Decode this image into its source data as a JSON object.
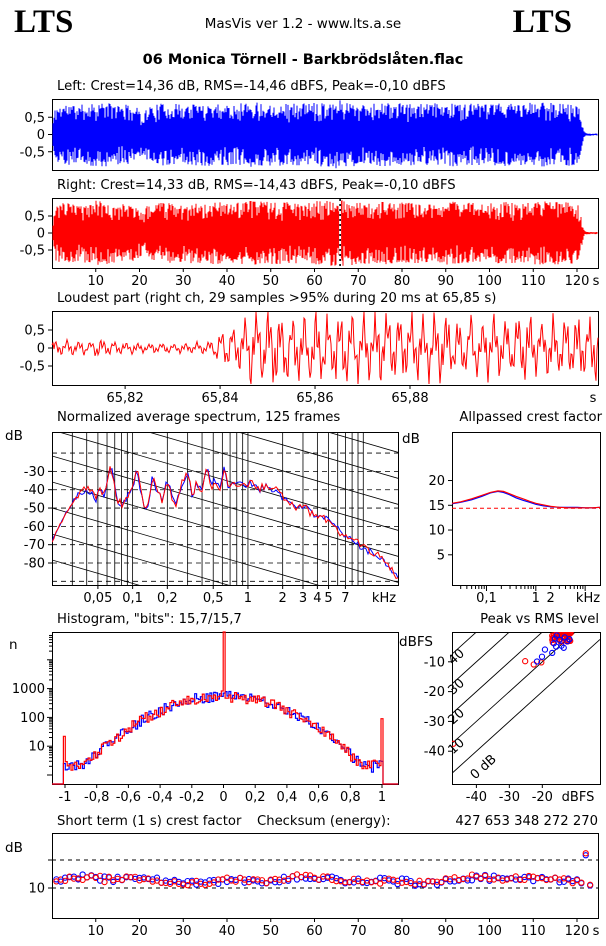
{
  "header": {
    "logo_left": "LTS",
    "logo_right": "LTS",
    "version_text": "MasVis ver 1.2 - www.lts.a.se"
  },
  "track_title": "06 Monica Törnell - Barkbrödslåten.flac",
  "checksum": {
    "label": "Checksum (energy):",
    "value": "427 653 348 272 270"
  },
  "colors": {
    "left_channel": "#0000ff",
    "right_channel": "#ff0000",
    "axis": "#000000",
    "reference_dashed": "#ff0000",
    "background": "#ffffff"
  },
  "chart_data": [
    {
      "id": "left_waveform",
      "type": "area",
      "title": "Left: Crest=14,36 dB, RMS=-14,46 dBFS, Peak=-0,10 dBFS",
      "channel": "left",
      "color": "#0000ff",
      "x_range_s": [
        0,
        124.8
      ],
      "y_ticks": [
        "0,5",
        "0",
        "-0,5"
      ],
      "y_tick_values": [
        0.5,
        0,
        -0.5
      ],
      "envelope": [
        [
          0,
          0.25
        ],
        [
          0.8,
          0.82
        ],
        [
          3,
          0.9
        ],
        [
          6,
          0.85
        ],
        [
          10,
          0.95
        ],
        [
          14,
          0.9
        ],
        [
          18,
          0.85
        ],
        [
          20,
          0.75
        ],
        [
          21,
          0.55
        ],
        [
          21.6,
          0.8
        ],
        [
          25,
          0.9
        ],
        [
          30,
          0.88
        ],
        [
          35,
          0.92
        ],
        [
          40,
          0.9
        ],
        [
          45,
          0.95
        ],
        [
          50,
          0.92
        ],
        [
          55,
          0.9
        ],
        [
          60,
          0.93
        ],
        [
          64,
          0.98
        ],
        [
          66,
          1.0
        ],
        [
          68,
          0.95
        ],
        [
          72,
          0.9
        ],
        [
          76,
          0.92
        ],
        [
          80,
          0.9
        ],
        [
          85,
          0.88
        ],
        [
          90,
          0.93
        ],
        [
          95,
          0.9
        ],
        [
          100,
          0.88
        ],
        [
          104,
          0.92
        ],
        [
          108,
          0.9
        ],
        [
          112,
          0.95
        ],
        [
          116,
          0.92
        ],
        [
          119,
          0.9
        ],
        [
          120.5,
          0.8
        ],
        [
          121,
          0.45
        ],
        [
          121.5,
          0.12
        ],
        [
          122,
          0.04
        ],
        [
          124.8,
          0.03
        ]
      ]
    },
    {
      "id": "right_waveform",
      "type": "area",
      "title": "Right: Crest=14,33 dB, RMS=-14,43 dBFS, Peak=-0,10 dBFS",
      "channel": "right",
      "color": "#ff0000",
      "x_range_s": [
        0,
        124.8
      ],
      "marker_s": 65.85,
      "y_ticks": [
        "0,5",
        "0",
        "-0,5"
      ],
      "y_tick_values": [
        0.5,
        0,
        -0.5
      ],
      "x_ticks": {
        "values": [
          10,
          20,
          30,
          40,
          50,
          60,
          70,
          80,
          90,
          100,
          110,
          120
        ],
        "labels": [
          "10",
          "20",
          "30",
          "40",
          "50",
          "60",
          "70",
          "80",
          "90",
          "100",
          "110",
          "120"
        ],
        "unit": "s"
      },
      "envelope": [
        [
          0,
          0.25
        ],
        [
          0.8,
          0.82
        ],
        [
          3,
          0.9
        ],
        [
          6,
          0.85
        ],
        [
          10,
          0.95
        ],
        [
          14,
          0.9
        ],
        [
          18,
          0.85
        ],
        [
          20,
          0.75
        ],
        [
          21,
          0.55
        ],
        [
          21.6,
          0.8
        ],
        [
          25,
          0.9
        ],
        [
          30,
          0.88
        ],
        [
          35,
          0.92
        ],
        [
          40,
          0.9
        ],
        [
          45,
          0.95
        ],
        [
          50,
          0.92
        ],
        [
          55,
          0.9
        ],
        [
          60,
          0.93
        ],
        [
          64,
          0.98
        ],
        [
          66,
          1.0
        ],
        [
          68,
          0.95
        ],
        [
          72,
          0.9
        ],
        [
          76,
          0.92
        ],
        [
          80,
          0.9
        ],
        [
          85,
          0.88
        ],
        [
          90,
          0.93
        ],
        [
          95,
          0.9
        ],
        [
          100,
          0.88
        ],
        [
          104,
          0.92
        ],
        [
          108,
          0.9
        ],
        [
          112,
          0.95
        ],
        [
          116,
          0.92
        ],
        [
          119,
          0.9
        ],
        [
          120.5,
          0.8
        ],
        [
          121,
          0.45
        ],
        [
          121.5,
          0.12
        ],
        [
          122,
          0.04
        ],
        [
          124.8,
          0.03
        ]
      ]
    },
    {
      "id": "loudest_part",
      "type": "line",
      "title": "Loudest part (right ch, 29 samples >95% during 20 ms at 65,85 s)",
      "channel": "right",
      "color": "#ff0000",
      "x_range_s": [
        65.8046,
        65.9196
      ],
      "y_ticks": [
        "0,5",
        "0",
        "-0,5"
      ],
      "y_tick_values": [
        0.5,
        0,
        -0.5
      ],
      "x_ticks": {
        "values": [
          65.82,
          65.84,
          65.86,
          65.88
        ],
        "labels": [
          "65,82",
          "65,84",
          "65,86",
          "65,88"
        ],
        "unit": "s"
      },
      "envelope": [
        [
          65.8046,
          0.2
        ],
        [
          65.81,
          0.17
        ],
        [
          65.815,
          0.22
        ],
        [
          65.82,
          0.16
        ],
        [
          65.825,
          0.13
        ],
        [
          65.83,
          0.12
        ],
        [
          65.835,
          0.14
        ],
        [
          65.838,
          0.2
        ],
        [
          65.841,
          0.45
        ],
        [
          65.844,
          0.7
        ],
        [
          65.847,
          0.95
        ],
        [
          65.85,
          0.98
        ],
        [
          65.854,
          0.9
        ],
        [
          65.858,
          0.95
        ],
        [
          65.862,
          0.88
        ],
        [
          65.866,
          0.92
        ],
        [
          65.87,
          0.85
        ],
        [
          65.875,
          0.88
        ],
        [
          65.88,
          0.82
        ],
        [
          65.885,
          0.85
        ],
        [
          65.89,
          0.8
        ],
        [
          65.895,
          0.82
        ],
        [
          65.9,
          0.78
        ],
        [
          65.905,
          0.8
        ],
        [
          65.91,
          0.75
        ],
        [
          65.9196,
          0.78
        ]
      ]
    },
    {
      "id": "spectrum",
      "type": "line",
      "title": "Normalized average spectrum, 125 frames",
      "ylabel": "dB",
      "x_unit": "kHz",
      "x_range_khz": [
        0.02,
        20
      ],
      "y_range_db": [
        -92,
        -8.5
      ],
      "y_ticks": [
        "-30",
        "-40",
        "-50",
        "-60",
        "-70",
        "-80"
      ],
      "y_tick_values": [
        -30,
        -40,
        -50,
        -60,
        -70,
        -80
      ],
      "x_ticks": {
        "values": [
          0.05,
          0.1,
          0.2,
          0.5,
          1,
          2,
          3,
          4,
          5,
          7
        ],
        "labels": [
          "0,05",
          "0,1",
          "0,2",
          "0,5",
          "1",
          "2",
          "3",
          "4",
          "5",
          "7"
        ],
        "unit": "kHz"
      },
      "series": [
        {
          "name": "left",
          "color": "#0000ff"
        },
        {
          "name": "right",
          "color": "#ff0000"
        }
      ],
      "points_khz_db": [
        [
          0.02,
          -68
        ],
        [
          0.024,
          -58
        ],
        [
          0.028,
          -50
        ],
        [
          0.032,
          -45
        ],
        [
          0.036,
          -41
        ],
        [
          0.04,
          -39
        ],
        [
          0.044,
          -42
        ],
        [
          0.048,
          -45
        ],
        [
          0.052,
          -38
        ],
        [
          0.056,
          -43
        ],
        [
          0.06,
          -37
        ],
        [
          0.065,
          -26
        ],
        [
          0.07,
          -40
        ],
        [
          0.075,
          -46
        ],
        [
          0.08,
          -48
        ],
        [
          0.09,
          -43
        ],
        [
          0.1,
          -37
        ],
        [
          0.11,
          -30
        ],
        [
          0.12,
          -44
        ],
        [
          0.13,
          -52
        ],
        [
          0.14,
          -45
        ],
        [
          0.15,
          -31
        ],
        [
          0.16,
          -40
        ],
        [
          0.18,
          -46
        ],
        [
          0.2,
          -34
        ],
        [
          0.22,
          -44
        ],
        [
          0.24,
          -48
        ],
        [
          0.27,
          -36
        ],
        [
          0.3,
          -31
        ],
        [
          0.33,
          -43
        ],
        [
          0.36,
          -36
        ],
        [
          0.4,
          -41
        ],
        [
          0.44,
          -26
        ],
        [
          0.48,
          -39
        ],
        [
          0.52,
          -34
        ],
        [
          0.57,
          -41
        ],
        [
          0.62,
          -28
        ],
        [
          0.68,
          -39
        ],
        [
          0.75,
          -35
        ],
        [
          0.82,
          -38
        ],
        [
          0.9,
          -36
        ],
        [
          1.0,
          -38
        ],
        [
          1.1,
          -36
        ],
        [
          1.25,
          -40
        ],
        [
          1.4,
          -38
        ],
        [
          1.6,
          -41
        ],
        [
          1.8,
          -40
        ],
        [
          2.0,
          -44
        ],
        [
          2.3,
          -47
        ],
        [
          2.6,
          -49
        ],
        [
          3.0,
          -48
        ],
        [
          3.4,
          -52
        ],
        [
          3.8,
          -54
        ],
        [
          4.3,
          -53
        ],
        [
          4.8,
          -57
        ],
        [
          5.4,
          -59
        ],
        [
          6.0,
          -62
        ],
        [
          6.7,
          -65
        ],
        [
          7.5,
          -67
        ],
        [
          8.3,
          -68
        ],
        [
          9.2,
          -70
        ],
        [
          10,
          -71
        ],
        [
          11,
          -73
        ],
        [
          12.5,
          -75
        ],
        [
          14,
          -77
        ],
        [
          16,
          -80
        ],
        [
          18,
          -84
        ],
        [
          20,
          -88
        ]
      ]
    },
    {
      "id": "allpassed_crest",
      "type": "line",
      "title": "Allpassed crest factor",
      "ylabel": "dB",
      "x_range_khz": [
        0.02,
        20
      ],
      "y_range_db": [
        -1.1,
        29.8
      ],
      "y_ticks": [
        "20",
        "15",
        "10",
        "5"
      ],
      "y_tick_values": [
        20,
        15,
        10,
        5
      ],
      "x_ticks": {
        "values": [
          0.1,
          1,
          2
        ],
        "labels": [
          "0,1",
          "1",
          "2"
        ],
        "unit": "kHz"
      },
      "reference_db": 14.4,
      "series": [
        {
          "name": "left",
          "color": "#0000ff",
          "points": [
            [
              0.02,
              15.3
            ],
            [
              0.03,
              15.6
            ],
            [
              0.05,
              16.1
            ],
            [
              0.08,
              16.8
            ],
            [
              0.12,
              17.5
            ],
            [
              0.17,
              17.8
            ],
            [
              0.22,
              17.6
            ],
            [
              0.3,
              17.1
            ],
            [
              0.4,
              16.5
            ],
            [
              0.55,
              16.0
            ],
            [
              0.75,
              15.6
            ],
            [
              1.0,
              15.2
            ],
            [
              1.4,
              14.9
            ],
            [
              2.0,
              14.7
            ],
            [
              3.0,
              14.6
            ],
            [
              4.5,
              14.6
            ],
            [
              7,
              14.6
            ],
            [
              10,
              14.5
            ],
            [
              14,
              14.5
            ],
            [
              20,
              14.6
            ]
          ]
        },
        {
          "name": "right",
          "color": "#ff0000",
          "points": [
            [
              0.02,
              15.4
            ],
            [
              0.03,
              15.7
            ],
            [
              0.05,
              16.3
            ],
            [
              0.08,
              17.0
            ],
            [
              0.12,
              17.6
            ],
            [
              0.17,
              17.9
            ],
            [
              0.22,
              17.8
            ],
            [
              0.3,
              17.3
            ],
            [
              0.4,
              16.8
            ],
            [
              0.55,
              16.3
            ],
            [
              0.75,
              15.8
            ],
            [
              1.0,
              15.4
            ],
            [
              1.4,
              15.1
            ],
            [
              2.0,
              14.8
            ],
            [
              3.0,
              14.6
            ],
            [
              4.5,
              14.5
            ],
            [
              7,
              14.5
            ],
            [
              10,
              14.5
            ],
            [
              14,
              14.5
            ],
            [
              20,
              14.6
            ]
          ]
        }
      ]
    },
    {
      "id": "histogram",
      "type": "bar",
      "title": "Histogram, \"bits\": 15,7/15,7",
      "ylabel": "n",
      "y_scale": "log",
      "y_ticks": [
        "1000",
        "100",
        "10"
      ],
      "y_tick_values": [
        1000,
        100,
        10
      ],
      "x_ticks": {
        "values": [
          -1,
          -0.8,
          -0.6,
          -0.4,
          -0.2,
          0,
          0.2,
          0.4,
          0.6,
          0.8,
          1
        ],
        "labels": [
          "-1",
          "-0,8",
          "-0,6",
          "-0,4",
          "-0,2",
          "0",
          "0,2",
          "0,4",
          "0,6",
          "0,8",
          "1"
        ]
      },
      "peak_count": 540,
      "sigma": 0.37,
      "floor": 2.2,
      "center_spike_n": 100000,
      "edge_spike_minus1_n": 22,
      "edge_spike_plus1_n": 90,
      "series": [
        {
          "name": "left",
          "color": "#0000ff"
        },
        {
          "name": "right",
          "color": "#ff0000"
        }
      ]
    },
    {
      "id": "peak_vs_rms",
      "type": "scatter",
      "title": "Peak vs RMS level",
      "ylabel": "dBFS",
      "x_unit": "dBFS",
      "x_range": [
        -47.4,
        -2.5
      ],
      "y_range": [
        -51,
        0
      ],
      "x_ticks": {
        "values": [
          -40,
          -30,
          -20
        ],
        "labels": [
          "-40",
          "-30",
          "-20"
        ],
        "unit": "dBFS"
      },
      "y_ticks": [
        "-10",
        "-20",
        "-30",
        "-40"
      ],
      "y_tick_values": [
        -10,
        -20,
        -30,
        -40
      ],
      "diagonal_values": [
        40,
        30,
        20,
        10,
        0
      ],
      "diagonal_labels": [
        "40",
        "30",
        "20",
        "10",
        "0 dB"
      ],
      "cluster": {
        "count": 46,
        "rms_center": -14.2,
        "rms_spread": 5.8,
        "peak_min": -0.35,
        "peak_falloff": 3.2
      },
      "points_red": [
        [
          -25.2,
          -9.8
        ],
        [
          -22.6,
          -10.9
        ],
        [
          -20.3,
          -10.2
        ],
        [
          -47,
          -37.5
        ]
      ],
      "points_blue": [
        [
          -20.1,
          -8.3
        ],
        [
          -17.0,
          -7.0
        ],
        [
          -21.6,
          -9.9
        ],
        [
          -19.2,
          -5.9
        ],
        [
          -15.8,
          -4.9
        ],
        [
          -14.2,
          -4.6
        ],
        [
          -13.5,
          -5.3
        ],
        [
          -16.5,
          -3.8
        ],
        [
          -13.2,
          -1.8
        ],
        [
          -14.8,
          -2.6
        ],
        [
          -12.4,
          -3.1
        ],
        [
          -15.6,
          -1.2
        ],
        [
          -16.2,
          -2.2
        ],
        [
          -11.8,
          -2.4
        ]
      ]
    },
    {
      "id": "short_term_crest",
      "type": "scatter",
      "title": "Short term (1 s) crest factor",
      "ylabel": "dB",
      "y_tick": "10",
      "y_tick_values": [
        10,
        20
      ],
      "dashed_db": [
        10,
        20
      ],
      "duration_s": 123,
      "typical_db": 12.8,
      "spread_db": 2.2,
      "outlier": {
        "t_s": 122,
        "db": 22.4
      },
      "x_ticks": {
        "values": [
          10,
          20,
          30,
          40,
          50,
          60,
          70,
          80,
          90,
          100,
          110,
          120
        ],
        "labels": [
          "10",
          "20",
          "30",
          "40",
          "50",
          "60",
          "70",
          "80",
          "90",
          "100",
          "110",
          "120"
        ],
        "unit": "s"
      },
      "series": [
        {
          "name": "left",
          "color": "#0000ff"
        },
        {
          "name": "right",
          "color": "#ff0000"
        }
      ]
    }
  ]
}
